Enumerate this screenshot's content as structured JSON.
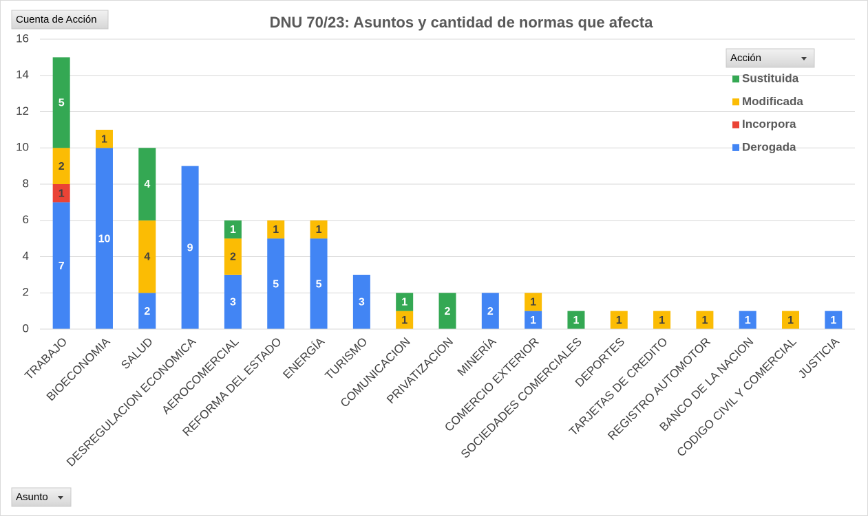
{
  "chart_data": {
    "type": "stacked_bar",
    "title": "DNU 70/23: Asuntos y cantidad de normas que afecta",
    "field_buttons": {
      "values": "Cuenta de Acción",
      "legend": "Acción",
      "axis": "Asunto"
    },
    "categories": [
      "TRABAJO",
      "BIOECONOMIA",
      "SALUD",
      "DESREGULACION ECONOMICA",
      "AEROCOMERCIAL",
      "REFORMA DEL ESTADO",
      "ENERGÍA",
      "TURISMO",
      "COMUNICACION",
      "PRIVATIZACION",
      "MINERÍA",
      "COMERCIO EXTERIOR",
      "SOCIEDADES COMERCIALES",
      "DEPORTES",
      "TARJETAS DE CREDITO",
      "REGISTRO AUTOMOTOR",
      "BANCO DE LA NACION",
      "CODIGO CIVIL Y COMERCIAL",
      "JUSTICIA"
    ],
    "series": [
      {
        "name": "Derogada",
        "color": "#4285f4",
        "label_color": "#ffffff",
        "values": [
          7,
          10,
          2,
          9,
          3,
          5,
          5,
          3,
          null,
          null,
          2,
          1,
          null,
          null,
          null,
          null,
          1,
          null,
          1
        ]
      },
      {
        "name": "Incorpora",
        "color": "#ea4335",
        "label_color": "#404040",
        "values": [
          1,
          null,
          null,
          null,
          null,
          null,
          null,
          null,
          null,
          null,
          null,
          null,
          null,
          null,
          null,
          null,
          null,
          null,
          null
        ]
      },
      {
        "name": "Modificada",
        "color": "#fbbc04",
        "label_color": "#404040",
        "values": [
          2,
          1,
          4,
          null,
          2,
          1,
          1,
          null,
          1,
          null,
          null,
          1,
          null,
          1,
          1,
          1,
          null,
          1,
          null
        ]
      },
      {
        "name": "Sustituida",
        "color": "#34a853",
        "label_color": "#ffffff",
        "values": [
          5,
          null,
          4,
          null,
          1,
          null,
          null,
          null,
          1,
          2,
          null,
          null,
          1,
          null,
          null,
          null,
          null,
          null,
          null
        ]
      }
    ],
    "ylim": [
      0,
      16
    ],
    "yticks": [
      0,
      2,
      4,
      6,
      8,
      10,
      12,
      14,
      16
    ],
    "grid": true,
    "legend": "top-right"
  }
}
